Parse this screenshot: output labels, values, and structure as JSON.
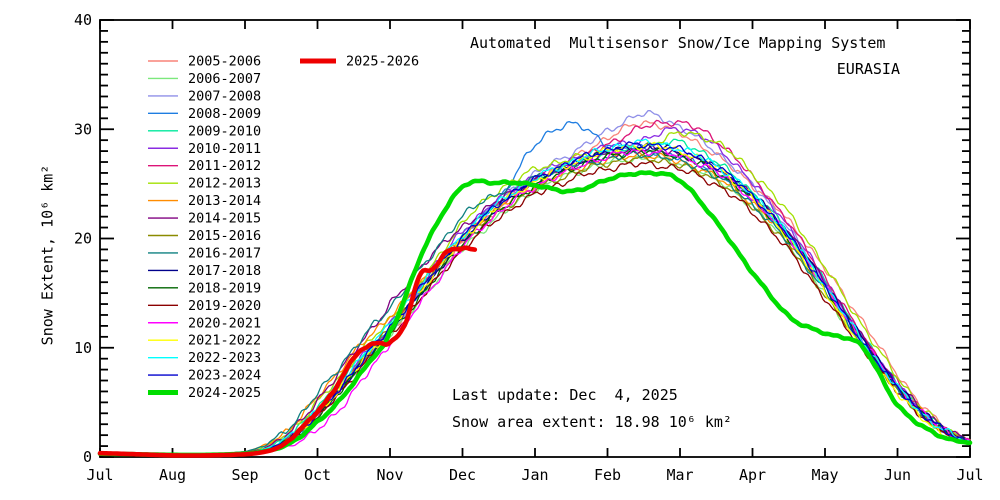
{
  "header": {
    "title": "Automated  Multisensor Snow/Ice Mapping System",
    "region": "EURASIA"
  },
  "annotation": {
    "line1": "Last update: Dec  4, 2025",
    "line2": "Snow area extent: 18.98 10⁶ km²"
  },
  "axes": {
    "ylabel": "Snow Extent, 10⁶ km²",
    "ylim": [
      0,
      40
    ],
    "y_ticks": [
      0,
      10,
      20,
      30,
      40
    ],
    "y_minor_step": 1,
    "x_months": [
      "Jul",
      "Aug",
      "Sep",
      "Oct",
      "Nov",
      "Dec",
      "Jan",
      "Feb",
      "Mar",
      "Apr",
      "May",
      "Jun",
      "Jul"
    ]
  },
  "chart_data": {
    "type": "line",
    "title": "Automated  Multisensor Snow/Ice Mapping System",
    "subtitle": "EURASIA",
    "xlabel": "",
    "ylabel": "Snow Extent, 10⁶ km²",
    "x_unit": "months since Jul 1",
    "ylim": [
      0,
      40
    ],
    "legend_position": "upper-left-inside",
    "grid": false,
    "x": [
      0,
      0.5,
      1,
      1.5,
      2,
      2.25,
      2.5,
      2.75,
      3,
      3.25,
      3.5,
      3.75,
      4,
      4.5,
      5,
      5.5,
      6,
      6.5,
      7,
      7.5,
      8,
      8.5,
      9,
      9.5,
      10,
      10.5,
      11,
      11.5,
      12
    ],
    "series": [
      {
        "name": "2005-2006",
        "color": "#F88379",
        "bold": false,
        "y": [
          0.4,
          0.3,
          0.3,
          0.3,
          0.4,
          0.7,
          1.3,
          2.4,
          4.0,
          5.6,
          7.6,
          9.6,
          11.6,
          15.6,
          19.6,
          22.8,
          25.3,
          27.2,
          29.2,
          30.6,
          29.6,
          27.6,
          24.9,
          21.6,
          17.2,
          12.6,
          7.6,
          3.6,
          1.6
        ]
      },
      {
        "name": "2006-2007",
        "color": "#7CE87C",
        "bold": false,
        "y": [
          0.3,
          0.3,
          0.2,
          0.2,
          0.4,
          0.7,
          1.4,
          2.6,
          4.2,
          5.9,
          7.7,
          9.4,
          11.3,
          15.0,
          19.0,
          22.0,
          24.4,
          25.9,
          26.9,
          27.3,
          26.8,
          25.4,
          22.9,
          19.4,
          14.9,
          10.3,
          6.2,
          3.0,
          1.3
        ]
      },
      {
        "name": "2007-2008",
        "color": "#8F8FE8",
        "bold": false,
        "y": [
          0.3,
          0.25,
          0.2,
          0.2,
          0.35,
          0.6,
          1.2,
          2.2,
          3.8,
          5.5,
          7.6,
          9.6,
          11.7,
          15.8,
          20.1,
          23.4,
          25.9,
          27.8,
          29.8,
          31.4,
          30.2,
          27.9,
          24.9,
          20.9,
          15.9,
          11.0,
          6.6,
          3.2,
          1.4
        ]
      },
      {
        "name": "2008-2009",
        "color": "#1E7DE1",
        "bold": false,
        "y": [
          0.3,
          0.25,
          0.2,
          0.2,
          0.35,
          0.6,
          1.2,
          2.3,
          4.1,
          5.8,
          7.8,
          9.7,
          11.7,
          16.0,
          20.3,
          23.6,
          28.5,
          30.5,
          28.7,
          28.2,
          27.4,
          26.1,
          23.6,
          20.1,
          15.6,
          10.9,
          6.5,
          3.2,
          1.4
        ]
      },
      {
        "name": "2009-2010",
        "color": "#00E89C",
        "bold": false,
        "y": [
          0.3,
          0.25,
          0.2,
          0.2,
          0.4,
          0.7,
          1.5,
          2.8,
          4.5,
          6.3,
          8.3,
          10.2,
          12.2,
          16.2,
          20.2,
          23.2,
          25.4,
          26.8,
          27.8,
          28.3,
          28.8,
          27.0,
          24.2,
          20.6,
          16.1,
          11.2,
          6.7,
          3.3,
          1.4
        ]
      },
      {
        "name": "2010-2011",
        "color": "#8A2BE2",
        "bold": false,
        "y": [
          0.3,
          0.25,
          0.2,
          0.2,
          0.35,
          0.6,
          1.3,
          2.5,
          4.3,
          6.1,
          8.2,
          10.3,
          12.4,
          16.6,
          20.6,
          23.6,
          25.7,
          27.2,
          28.4,
          29.0,
          30.1,
          28.4,
          25.1,
          21.1,
          16.2,
          11.1,
          6.6,
          3.2,
          1.4
        ]
      },
      {
        "name": "2011-2012",
        "color": "#DC1478",
        "bold": false,
        "y": [
          0.3,
          0.25,
          0.2,
          0.2,
          0.35,
          0.6,
          1.2,
          2.2,
          3.9,
          5.7,
          7.8,
          9.8,
          11.9,
          16.1,
          20.1,
          23.1,
          25.3,
          26.9,
          28.6,
          30.2,
          30.6,
          29.0,
          25.6,
          21.4,
          16.4,
          11.3,
          6.8,
          3.3,
          1.5
        ]
      },
      {
        "name": "2012-2013",
        "color": "#A2E000",
        "bold": false,
        "y": [
          0.3,
          0.25,
          0.2,
          0.2,
          0.45,
          0.9,
          1.8,
          3.2,
          5.0,
          6.9,
          8.9,
          10.8,
          12.7,
          16.7,
          21.4,
          24.4,
          26.3,
          27.3,
          28.0,
          28.4,
          29.6,
          28.8,
          26.0,
          22.3,
          17.4,
          12.2,
          7.3,
          3.5,
          1.5
        ]
      },
      {
        "name": "2013-2014",
        "color": "#FF8C00",
        "bold": false,
        "y": [
          0.3,
          0.25,
          0.2,
          0.25,
          0.5,
          1.0,
          2.0,
          3.5,
          5.5,
          7.5,
          9.5,
          11.3,
          13.0,
          16.5,
          20.0,
          22.8,
          24.8,
          26.2,
          27.2,
          27.6,
          27.0,
          25.6,
          23.2,
          19.8,
          15.4,
          10.8,
          6.5,
          3.1,
          1.3
        ]
      },
      {
        "name": "2014-2015",
        "color": "#800080",
        "bold": false,
        "y": [
          0.3,
          0.25,
          0.2,
          0.2,
          0.4,
          0.8,
          1.7,
          3.1,
          5.2,
          7.3,
          9.6,
          11.8,
          14.0,
          18.0,
          21.0,
          23.5,
          25.3,
          26.6,
          27.6,
          28.1,
          27.7,
          26.3,
          23.9,
          20.5,
          16.0,
          11.1,
          6.7,
          3.4,
          1.5
        ]
      },
      {
        "name": "2015-2016",
        "color": "#8B8B00",
        "bold": false,
        "y": [
          0.3,
          0.25,
          0.2,
          0.2,
          0.35,
          0.65,
          1.3,
          2.4,
          4.1,
          5.9,
          7.9,
          9.9,
          11.9,
          15.9,
          19.7,
          22.4,
          24.5,
          25.9,
          26.9,
          27.3,
          26.7,
          25.3,
          22.8,
          19.3,
          14.8,
          10.2,
          6.1,
          2.9,
          1.3
        ]
      },
      {
        "name": "2016-2017",
        "color": "#0F8080",
        "bold": false,
        "y": [
          0.35,
          0.3,
          0.25,
          0.3,
          0.5,
          1.0,
          2.1,
          3.7,
          5.8,
          7.8,
          9.9,
          11.9,
          13.8,
          17.8,
          22.0,
          24.2,
          25.6,
          26.6,
          27.3,
          27.7,
          27.1,
          25.7,
          23.1,
          19.6,
          15.1,
          10.5,
          6.3,
          3.0,
          1.3
        ]
      },
      {
        "name": "2017-2018",
        "color": "#00008B",
        "bold": false,
        "y": [
          0.3,
          0.25,
          0.2,
          0.2,
          0.35,
          0.6,
          1.2,
          2.3,
          4.0,
          5.7,
          7.7,
          9.7,
          11.7,
          15.7,
          19.8,
          22.9,
          25.1,
          26.7,
          27.9,
          28.4,
          27.9,
          26.5,
          24.0,
          20.4,
          15.8,
          11.0,
          6.6,
          3.2,
          1.4
        ]
      },
      {
        "name": "2018-2019",
        "color": "#006400",
        "bold": false,
        "y": [
          0.3,
          0.25,
          0.2,
          0.2,
          0.35,
          0.6,
          1.2,
          2.2,
          3.8,
          5.5,
          7.4,
          9.3,
          11.3,
          15.4,
          19.4,
          22.5,
          24.8,
          26.4,
          27.5,
          28.0,
          27.5,
          26.1,
          23.6,
          20.0,
          15.5,
          10.7,
          6.4,
          3.1,
          1.4
        ]
      },
      {
        "name": "2019-2020",
        "color": "#8B0000",
        "bold": false,
        "y": [
          0.3,
          0.25,
          0.2,
          0.2,
          0.35,
          0.6,
          1.1,
          2.1,
          3.7,
          5.4,
          7.4,
          9.3,
          11.2,
          15.1,
          19.0,
          21.9,
          24.0,
          25.4,
          26.4,
          26.8,
          26.3,
          24.9,
          22.4,
          18.9,
          14.5,
          10.0,
          6.0,
          2.9,
          1.3
        ]
      },
      {
        "name": "2020-2021",
        "color": "#FF00FF",
        "bold": false,
        "y": [
          0.3,
          0.25,
          0.2,
          0.2,
          0.3,
          0.45,
          0.8,
          1.4,
          2.5,
          4.0,
          6.0,
          8.2,
          10.5,
          14.8,
          19.2,
          22.4,
          24.7,
          26.3,
          27.5,
          28.0,
          27.5,
          26.1,
          23.6,
          20.1,
          15.6,
          10.8,
          6.5,
          3.1,
          1.4
        ]
      },
      {
        "name": "2021-2022",
        "color": "#FFFF00",
        "bold": false,
        "y": [
          0.3,
          0.25,
          0.2,
          0.2,
          0.35,
          0.6,
          1.2,
          2.3,
          4.0,
          5.8,
          7.8,
          9.8,
          11.8,
          15.9,
          19.9,
          23.0,
          25.2,
          26.8,
          28.0,
          28.5,
          28.0,
          26.5,
          23.8,
          20.0,
          15.2,
          10.2,
          5.9,
          2.7,
          1.2
        ]
      },
      {
        "name": "2022-2023",
        "color": "#00FFFF",
        "bold": false,
        "y": [
          0.3,
          0.25,
          0.2,
          0.2,
          0.4,
          0.7,
          1.4,
          2.6,
          4.4,
          6.2,
          8.3,
          10.3,
          12.3,
          16.3,
          20.3,
          23.3,
          25.5,
          27.0,
          28.2,
          28.8,
          28.2,
          26.7,
          24.0,
          20.3,
          15.7,
          10.8,
          6.4,
          3.1,
          1.4
        ]
      },
      {
        "name": "2023-2024",
        "color": "#0000CD",
        "bold": false,
        "y": [
          0.3,
          0.25,
          0.2,
          0.2,
          0.35,
          0.6,
          1.2,
          2.3,
          4.0,
          5.8,
          7.9,
          9.9,
          12.0,
          16.1,
          20.1,
          23.2,
          25.4,
          27.0,
          28.1,
          28.6,
          28.1,
          26.6,
          23.9,
          20.2,
          15.6,
          10.7,
          6.4,
          3.1,
          1.4
        ]
      },
      {
        "name": "2024-2025",
        "color": "#00DD00",
        "bold": true,
        "y": [
          0.3,
          0.25,
          0.2,
          0.2,
          0.3,
          0.5,
          0.9,
          1.8,
          3.2,
          4.8,
          6.8,
          9.0,
          11.5,
          19.5,
          24.7,
          25.1,
          24.9,
          24.3,
          25.4,
          26.0,
          25.3,
          21.5,
          16.9,
          12.9,
          11.3,
          10.2,
          4.8,
          2.2,
          1.3
        ]
      },
      {
        "name": "2025-2026",
        "color": "#EE0000",
        "bold": true,
        "current": true,
        "x": [
          0,
          0.5,
          1,
          1.5,
          2,
          2.25,
          2.5,
          2.75,
          3,
          3.2,
          3.4,
          3.6,
          3.8,
          4,
          4.2,
          4.4,
          4.6,
          4.8,
          5,
          5.17
        ],
        "y": [
          0.35,
          0.25,
          0.15,
          0.15,
          0.25,
          0.45,
          1.0,
          2.4,
          4.2,
          5.8,
          8.0,
          9.8,
          10.4,
          10.5,
          12.0,
          16.5,
          17.3,
          18.8,
          19.1,
          18.98
        ]
      }
    ]
  }
}
